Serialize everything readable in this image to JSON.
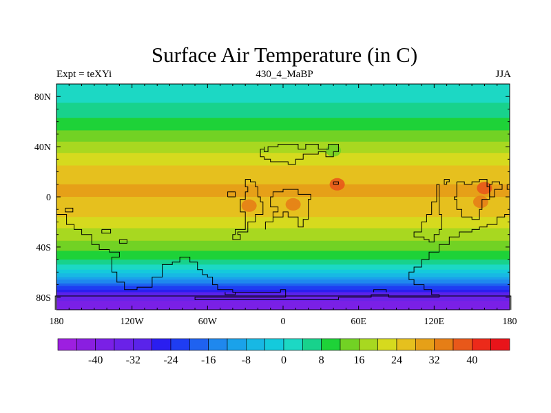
{
  "chart_data": {
    "type": "heatmap",
    "title": "Surface Air Temperature (in C)",
    "subtitle_left": "Expt = teXYi",
    "subtitle_center": "430_4_MaBP",
    "subtitle_right": "JJA",
    "x_range": [
      -180,
      180
    ],
    "y_range": [
      -90,
      90
    ],
    "x_ticks": [
      {
        "value": -180,
        "label": "180"
      },
      {
        "value": -120,
        "label": "120W"
      },
      {
        "value": -60,
        "label": "60W"
      },
      {
        "value": 0,
        "label": "0"
      },
      {
        "value": 60,
        "label": "60E"
      },
      {
        "value": 120,
        "label": "120E"
      },
      {
        "value": 180,
        "label": "180"
      }
    ],
    "y_ticks": [
      {
        "value": 80,
        "label": "80N"
      },
      {
        "value": 40,
        "label": "40N"
      },
      {
        "value": 0,
        "label": "0"
      },
      {
        "value": -40,
        "label": "40S"
      },
      {
        "value": -80,
        "label": "80S"
      }
    ],
    "zonal_mean_temperature": {
      "lat": [
        90,
        80,
        70,
        60,
        50,
        40,
        30,
        20,
        10,
        0,
        -10,
        -20,
        -30,
        -40,
        -50,
        -60,
        -70,
        -80,
        -90
      ],
      "temp_c": [
        1,
        3,
        5,
        9,
        13,
        18,
        22,
        26,
        28,
        28,
        27,
        22,
        18,
        14,
        8,
        -2,
        -18,
        -34,
        -40
      ]
    },
    "warm_spots": [
      {
        "lon": -27,
        "lat": -7,
        "temp_c": 34
      },
      {
        "lon": 8,
        "lat": -6,
        "temp_c": 35
      },
      {
        "lon": 40,
        "lat": 37,
        "temp_c": 12
      },
      {
        "lon": 43,
        "lat": 10,
        "temp_c": 36
      },
      {
        "lon": 160,
        "lat": 7,
        "temp_c": 37
      },
      {
        "lon": 157,
        "lat": -4,
        "temp_c": 35
      }
    ],
    "colorbar": {
      "levels": [
        -44,
        -40,
        -36,
        -32,
        -28,
        -24,
        -20,
        -16,
        -12,
        -8,
        -4,
        0,
        4,
        8,
        12,
        16,
        20,
        24,
        28,
        32,
        36,
        40,
        44
      ],
      "labels": [
        "-40",
        "-32",
        "-24",
        "-16",
        "-8",
        "0",
        "8",
        "16",
        "24",
        "32",
        "40"
      ],
      "label_values": [
        -40,
        -32,
        -24,
        -16,
        -8,
        0,
        8,
        16,
        24,
        32,
        40
      ],
      "colors": [
        "#9d1fe0",
        "#8a1fe0",
        "#7a20e6",
        "#6a22e8",
        "#5a23ea",
        "#2a1ef0",
        "#1f3df2",
        "#1f62f0",
        "#1f88ee",
        "#1aa2ea",
        "#18b8e4",
        "#14cadc",
        "#1cd8c4",
        "#18d28c",
        "#1ed238",
        "#72d224",
        "#a8d820",
        "#d6da1e",
        "#e6c01e",
        "#e6a018",
        "#e67e16",
        "#e8581a",
        "#ec2a1a",
        "#e8141a"
      ]
    },
    "coastlines": [
      [
        [
          -173,
          -9
        ],
        [
          -173,
          -12
        ],
        [
          -167,
          -12
        ],
        [
          -167,
          -9
        ],
        [
          -173,
          -9
        ]
      ],
      [
        [
          -180,
          -14
        ],
        [
          -172,
          -14
        ],
        [
          -172,
          -22
        ],
        [
          -166,
          -22
        ],
        [
          -166,
          -26
        ],
        [
          -160,
          -26
        ],
        [
          -160,
          -30
        ],
        [
          -152,
          -30
        ],
        [
          -152,
          -38
        ],
        [
          -146,
          -38
        ],
        [
          -146,
          -42
        ],
        [
          -138,
          -42
        ],
        [
          -138,
          -44
        ],
        [
          -130,
          -44
        ],
        [
          -130,
          -48
        ],
        [
          -136,
          -48
        ],
        [
          -136,
          -60
        ],
        [
          -132,
          -60
        ],
        [
          -132,
          -68
        ],
        [
          -126,
          -68
        ],
        [
          -126,
          -74
        ],
        [
          -116,
          -74
        ],
        [
          -116,
          -72
        ],
        [
          -104,
          -72
        ],
        [
          -104,
          -64
        ],
        [
          -96,
          -64
        ],
        [
          -96,
          -54
        ],
        [
          -88,
          -54
        ],
        [
          -88,
          -52
        ],
        [
          -82,
          -52
        ],
        [
          -82,
          -48
        ],
        [
          -74,
          -48
        ],
        [
          -74,
          -52
        ],
        [
          -68,
          -52
        ],
        [
          -68,
          -58
        ],
        [
          -64,
          -58
        ],
        [
          -64,
          -62
        ],
        [
          -60,
          -62
        ],
        [
          -60,
          -64
        ],
        [
          -56,
          -64
        ],
        [
          -56,
          -70
        ],
        [
          -52,
          -70
        ],
        [
          -52,
          -74
        ],
        [
          -40,
          -74
        ],
        [
          -40,
          -76
        ],
        [
          -2,
          -76
        ],
        [
          -2,
          -74
        ],
        [
          2,
          -74
        ],
        [
          2,
          -80
        ],
        [
          -70,
          -80
        ],
        [
          -70,
          -82
        ],
        [
          44,
          -82
        ],
        [
          44,
          -80
        ],
        [
          70,
          -80
        ],
        [
          70,
          -78
        ],
        [
          84,
          -78
        ],
        [
          84,
          -80
        ],
        [
          124,
          -80
        ],
        [
          124,
          -78
        ],
        [
          118,
          -78
        ],
        [
          118,
          -74
        ],
        [
          112,
          -74
        ],
        [
          112,
          -70
        ],
        [
          104,
          -70
        ],
        [
          104,
          -66
        ],
        [
          100,
          -66
        ],
        [
          100,
          -60
        ],
        [
          104,
          -60
        ],
        [
          104,
          -56
        ],
        [
          110,
          -56
        ],
        [
          110,
          -50
        ],
        [
          116,
          -50
        ],
        [
          116,
          -44
        ],
        [
          124,
          -44
        ],
        [
          124,
          -38
        ],
        [
          132,
          -38
        ],
        [
          132,
          -32
        ],
        [
          140,
          -32
        ],
        [
          140,
          -28
        ],
        [
          150,
          -28
        ],
        [
          150,
          -26
        ],
        [
          156,
          -26
        ],
        [
          156,
          -24
        ],
        [
          162,
          -24
        ],
        [
          162,
          -22
        ],
        [
          170,
          -22
        ],
        [
          170,
          -16
        ],
        [
          176,
          -16
        ],
        [
          176,
          -14
        ],
        [
          180,
          -14
        ]
      ],
      [
        [
          -181,
          -90
        ],
        [
          -181,
          -79
        ],
        [
          181,
          -79
        ],
        [
          181,
          -90
        ]
      ],
      [
        [
          -130,
          -34
        ],
        [
          -124,
          -34
        ],
        [
          -124,
          -37
        ],
        [
          -130,
          -37
        ],
        [
          -130,
          -34
        ]
      ],
      [
        [
          -144,
          -26
        ],
        [
          -137,
          -26
        ],
        [
          -137,
          -29
        ],
        [
          -144,
          -29
        ],
        [
          -144,
          -26
        ]
      ],
      [
        [
          -46,
          -76
        ],
        [
          -46,
          -78
        ],
        [
          -38,
          -78
        ],
        [
          -38,
          -76
        ]
      ],
      [
        [
          72,
          -76
        ],
        [
          72,
          -74
        ],
        [
          82,
          -74
        ],
        [
          82,
          -76
        ]
      ],
      [
        [
          -15,
          40
        ],
        [
          -15,
          36
        ],
        [
          -12,
          36
        ],
        [
          -12,
          40
        ],
        [
          -4,
          40
        ],
        [
          -4,
          42
        ],
        [
          12,
          42
        ],
        [
          12,
          38
        ],
        [
          18,
          38
        ],
        [
          18,
          42
        ],
        [
          28,
          42
        ],
        [
          28,
          38
        ],
        [
          36,
          38
        ],
        [
          36,
          42
        ],
        [
          44,
          42
        ],
        [
          44,
          36
        ],
        [
          40,
          36
        ],
        [
          40,
          32
        ],
        [
          34,
          32
        ],
        [
          34,
          36
        ],
        [
          28,
          36
        ],
        [
          28,
          34
        ],
        [
          16,
          34
        ],
        [
          16,
          30
        ],
        [
          10,
          30
        ],
        [
          10,
          26
        ],
        [
          4,
          26
        ],
        [
          4,
          28
        ],
        [
          -10,
          28
        ],
        [
          -10,
          30
        ],
        [
          -15,
          30
        ],
        [
          -15,
          32
        ],
        [
          -18,
          32
        ],
        [
          -18,
          38
        ],
        [
          -15,
          38
        ],
        [
          -15,
          40
        ]
      ],
      [
        [
          -30,
          14
        ],
        [
          -26,
          14
        ],
        [
          -26,
          12
        ],
        [
          -22,
          12
        ],
        [
          -22,
          8
        ],
        [
          -20,
          8
        ],
        [
          -20,
          0
        ],
        [
          -18,
          0
        ],
        [
          -18,
          -4
        ],
        [
          -16,
          -4
        ],
        [
          -16,
          -14
        ],
        [
          -22,
          -14
        ],
        [
          -22,
          -20
        ],
        [
          -28,
          -20
        ],
        [
          -28,
          -28
        ],
        [
          -36,
          -28
        ],
        [
          -36,
          -30
        ],
        [
          -34,
          -30
        ],
        [
          -34,
          -34
        ],
        [
          -40,
          -34
        ],
        [
          -40,
          -30
        ],
        [
          -38,
          -30
        ],
        [
          -38,
          -26
        ],
        [
          -30,
          -26
        ],
        [
          -30,
          -12
        ],
        [
          -34,
          -12
        ],
        [
          -34,
          -2
        ],
        [
          -30,
          -2
        ],
        [
          -30,
          4
        ],
        [
          -28,
          4
        ],
        [
          -28,
          8
        ],
        [
          -30,
          8
        ],
        [
          -30,
          14
        ]
      ],
      [
        [
          -14,
          -26
        ],
        [
          -14,
          -20
        ],
        [
          -8,
          -20
        ],
        [
          -8,
          -16
        ],
        [
          0,
          -16
        ],
        [
          0,
          -12
        ],
        [
          4,
          -12
        ],
        [
          4,
          -16
        ],
        [
          12,
          -16
        ],
        [
          12,
          -24
        ],
        [
          16,
          -24
        ],
        [
          16,
          -18
        ],
        [
          20,
          -18
        ],
        [
          20,
          -2
        ],
        [
          22,
          -2
        ],
        [
          22,
          2
        ],
        [
          12,
          2
        ],
        [
          12,
          6
        ],
        [
          0,
          6
        ],
        [
          0,
          4
        ],
        [
          -8,
          4
        ],
        [
          -8,
          0
        ],
        [
          -10,
          0
        ],
        [
          -10,
          -8
        ],
        [
          -4,
          -8
        ],
        [
          -4,
          -12
        ],
        [
          -8,
          -12
        ],
        [
          -8,
          -20
        ],
        [
          -14,
          -20
        ],
        [
          -14,
          -26
        ]
      ],
      [
        [
          -44,
          0
        ],
        [
          -38,
          0
        ],
        [
          -38,
          4
        ],
        [
          -44,
          4
        ],
        [
          -44,
          0
        ]
      ],
      [
        [
          40,
          12
        ],
        [
          44,
          12
        ],
        [
          44,
          10
        ],
        [
          40,
          10
        ],
        [
          40,
          12
        ]
      ],
      [
        [
          122,
          10
        ],
        [
          122,
          -4
        ],
        [
          118,
          -4
        ],
        [
          118,
          -14
        ],
        [
          114,
          -14
        ],
        [
          114,
          -20
        ],
        [
          110,
          -20
        ],
        [
          110,
          -28
        ],
        [
          104,
          -28
        ],
        [
          104,
          -32
        ],
        [
          112,
          -32
        ],
        [
          112,
          -34
        ],
        [
          116,
          -34
        ],
        [
          116,
          -36
        ],
        [
          120,
          -36
        ],
        [
          120,
          -30
        ],
        [
          124,
          -30
        ],
        [
          124,
          -26
        ],
        [
          126,
          -26
        ],
        [
          126,
          -14
        ],
        [
          124,
          -14
        ],
        [
          124,
          10
        ],
        [
          122,
          10
        ]
      ],
      [
        [
          128,
          14
        ],
        [
          128,
          10
        ],
        [
          130,
          10
        ],
        [
          130,
          12
        ],
        [
          132,
          12
        ],
        [
          132,
          14
        ],
        [
          128,
          14
        ]
      ],
      [
        [
          138,
          12
        ],
        [
          138,
          0
        ],
        [
          136,
          0
        ],
        [
          136,
          -2
        ],
        [
          138,
          -2
        ],
        [
          138,
          -10
        ],
        [
          142,
          -10
        ],
        [
          142,
          -16
        ],
        [
          150,
          -16
        ],
        [
          150,
          -18
        ],
        [
          156,
          -18
        ],
        [
          156,
          -10
        ],
        [
          158,
          -10
        ],
        [
          158,
          -2
        ],
        [
          164,
          -2
        ],
        [
          164,
          8
        ],
        [
          162,
          8
        ],
        [
          162,
          14
        ],
        [
          156,
          14
        ],
        [
          156,
          12
        ],
        [
          150,
          12
        ],
        [
          150,
          10
        ],
        [
          144,
          10
        ],
        [
          144,
          12
        ],
        [
          138,
          12
        ]
      ],
      [
        [
          164,
          0
        ],
        [
          168,
          0
        ],
        [
          168,
          6
        ],
        [
          174,
          6
        ],
        [
          174,
          10
        ],
        [
          172,
          10
        ],
        [
          172,
          12
        ],
        [
          166,
          12
        ],
        [
          166,
          10
        ],
        [
          164,
          10
        ],
        [
          164,
          0
        ]
      ],
      [
        [
          178,
          10
        ],
        [
          178,
          6
        ],
        [
          180,
          6
        ]
      ]
    ]
  }
}
